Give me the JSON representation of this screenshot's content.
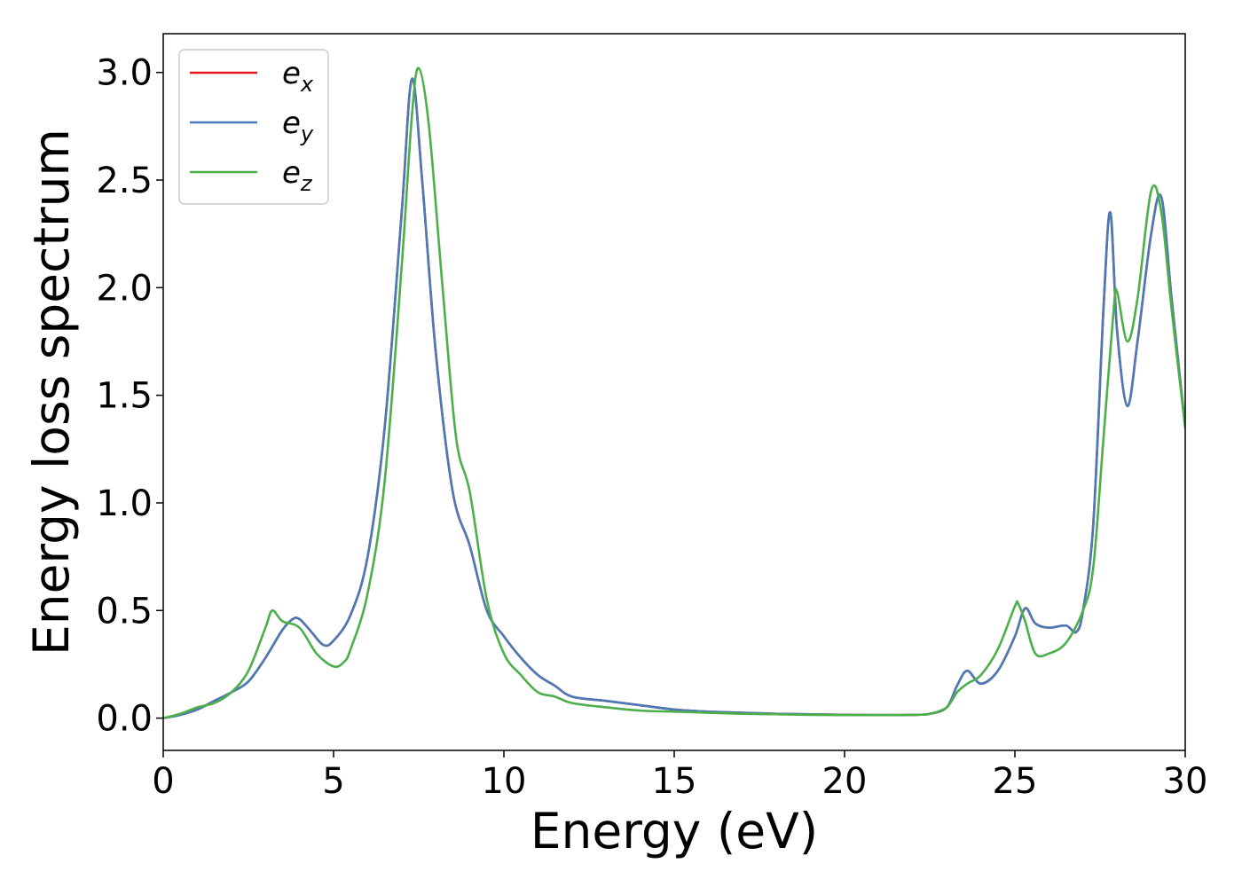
{
  "chart_data": {
    "type": "line",
    "title": "",
    "xlabel": "Energy (eV)",
    "ylabel": "Energy loss spectrum",
    "xlim": [
      0,
      30
    ],
    "ylim": [
      -0.15,
      3.18
    ],
    "xticks": [
      0,
      5,
      10,
      15,
      20,
      25,
      30
    ],
    "xtick_labels": [
      "0",
      "5",
      "10",
      "15",
      "20",
      "25",
      "30"
    ],
    "yticks": [
      0.0,
      0.5,
      1.0,
      1.5,
      2.0,
      2.5,
      3.0
    ],
    "ytick_labels": [
      "0.0",
      "0.5",
      "1.0",
      "1.5",
      "2.0",
      "2.5",
      "3.0"
    ],
    "grid": false,
    "legend_position": "top-left",
    "series": [
      {
        "name": "e_x",
        "legend_base": "e",
        "legend_sub": "x",
        "color": "#e41a1c",
        "x": [
          0,
          0.5,
          1,
          1.5,
          2,
          2.5,
          3,
          3.5,
          3.8,
          4,
          4.3,
          4.7,
          5,
          5.5,
          6,
          6.5,
          7,
          7.3,
          7.6,
          8,
          8.5,
          9,
          9.5,
          10,
          10.5,
          11,
          11.5,
          12,
          13,
          14,
          15,
          16,
          17,
          18,
          19,
          20,
          21,
          22,
          22.5,
          23,
          23.3,
          23.6,
          24,
          24.5,
          25,
          25.3,
          25.6,
          26,
          26.5,
          26.8,
          27,
          27.3,
          27.6,
          27.8,
          28,
          28.3,
          28.6,
          29,
          29.3,
          29.6,
          30
        ],
        "y": [
          0,
          0.015,
          0.04,
          0.08,
          0.12,
          0.17,
          0.28,
          0.41,
          0.46,
          0.46,
          0.41,
          0.34,
          0.36,
          0.48,
          0.75,
          1.35,
          2.35,
          2.97,
          2.5,
          1.7,
          1.05,
          0.8,
          0.5,
          0.38,
          0.28,
          0.2,
          0.15,
          0.1,
          0.08,
          0.06,
          0.04,
          0.03,
          0.025,
          0.02,
          0.018,
          0.015,
          0.014,
          0.015,
          0.02,
          0.05,
          0.15,
          0.22,
          0.16,
          0.22,
          0.38,
          0.51,
          0.44,
          0.42,
          0.43,
          0.4,
          0.5,
          0.9,
          1.9,
          2.35,
          1.8,
          1.45,
          1.75,
          2.25,
          2.42,
          1.95,
          1.35
        ]
      },
      {
        "name": "e_y",
        "legend_base": "e",
        "legend_sub": "y",
        "color": "#4a7bb8",
        "x": [
          0,
          0.5,
          1,
          1.5,
          2,
          2.5,
          3,
          3.5,
          3.8,
          4,
          4.3,
          4.7,
          5,
          5.5,
          6,
          6.5,
          7,
          7.3,
          7.6,
          8,
          8.5,
          9,
          9.5,
          10,
          10.5,
          11,
          11.5,
          12,
          13,
          14,
          15,
          16,
          17,
          18,
          19,
          20,
          21,
          22,
          22.5,
          23,
          23.3,
          23.6,
          24,
          24.5,
          25,
          25.3,
          25.6,
          26,
          26.5,
          26.8,
          27,
          27.3,
          27.6,
          27.8,
          28,
          28.3,
          28.6,
          29,
          29.3,
          29.6,
          30
        ],
        "y": [
          0,
          0.015,
          0.04,
          0.08,
          0.12,
          0.17,
          0.28,
          0.41,
          0.46,
          0.46,
          0.41,
          0.34,
          0.36,
          0.48,
          0.75,
          1.35,
          2.35,
          2.97,
          2.5,
          1.7,
          1.05,
          0.8,
          0.5,
          0.38,
          0.28,
          0.2,
          0.15,
          0.1,
          0.08,
          0.06,
          0.04,
          0.03,
          0.025,
          0.02,
          0.018,
          0.015,
          0.014,
          0.015,
          0.02,
          0.05,
          0.15,
          0.22,
          0.16,
          0.22,
          0.38,
          0.51,
          0.44,
          0.42,
          0.43,
          0.4,
          0.5,
          0.9,
          1.9,
          2.35,
          1.8,
          1.45,
          1.75,
          2.25,
          2.42,
          1.95,
          1.35
        ]
      },
      {
        "name": "e_z",
        "legend_base": "e",
        "legend_sub": "z",
        "color": "#4daf4a",
        "x": [
          0,
          0.5,
          1,
          1.5,
          2,
          2.5,
          3,
          3.2,
          3.5,
          4,
          4.5,
          5,
          5.3,
          5.5,
          6,
          6.5,
          7,
          7.3,
          7.5,
          7.8,
          8.2,
          8.6,
          9,
          9.5,
          10,
          10.5,
          11,
          11.5,
          12,
          13,
          14,
          15,
          16,
          17,
          18,
          19,
          20,
          21,
          22,
          22.5,
          23,
          23.3,
          23.6,
          24,
          24.5,
          25,
          25.1,
          25.3,
          25.6,
          26,
          26.5,
          27,
          27.3,
          27.6,
          27.9,
          28,
          28.3,
          28.6,
          29,
          29.3,
          29.6,
          30
        ],
        "y": [
          0,
          0.02,
          0.05,
          0.07,
          0.12,
          0.22,
          0.42,
          0.5,
          0.45,
          0.42,
          0.3,
          0.24,
          0.26,
          0.32,
          0.58,
          1.1,
          2.1,
          2.8,
          3.02,
          2.75,
          2.0,
          1.3,
          1.05,
          0.55,
          0.3,
          0.2,
          0.12,
          0.1,
          0.07,
          0.05,
          0.035,
          0.03,
          0.025,
          0.02,
          0.018,
          0.015,
          0.014,
          0.014,
          0.015,
          0.02,
          0.05,
          0.12,
          0.16,
          0.2,
          0.32,
          0.52,
          0.53,
          0.45,
          0.3,
          0.3,
          0.35,
          0.5,
          0.7,
          1.3,
          1.9,
          1.98,
          1.75,
          1.95,
          2.45,
          2.35,
          1.9,
          1.35
        ]
      }
    ]
  }
}
